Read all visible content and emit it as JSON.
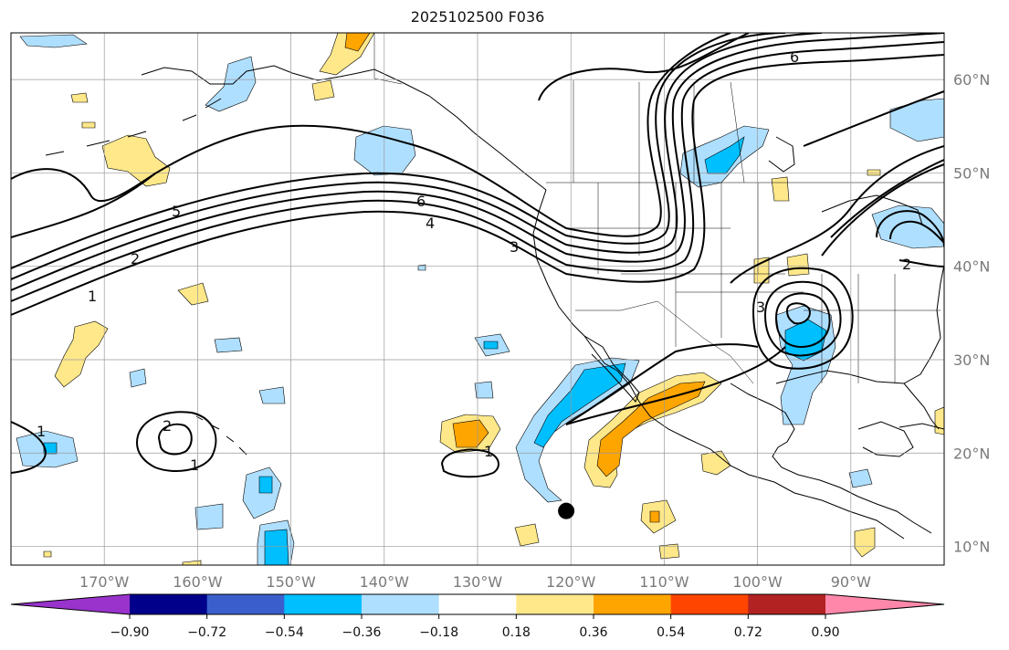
{
  "title": "2025102500 F036",
  "map": {
    "lon_range": [
      -180,
      -80
    ],
    "lat_range": [
      8,
      65
    ],
    "lon_grid": [
      -170,
      -160,
      -150,
      -140,
      -130,
      -120,
      -110,
      -100,
      -90
    ],
    "lat_grid": [
      10,
      20,
      30,
      40,
      50,
      60
    ],
    "lon_labels": [
      "170°W",
      "160°W",
      "150°W",
      "140°W",
      "130°W",
      "120°W",
      "110°W",
      "100°W",
      "90°W"
    ],
    "lat_labels": [
      "10°N",
      "20°N",
      "30°N",
      "40°N",
      "50°N",
      "60°N"
    ],
    "storm_marker": {
      "lon": -120.5,
      "lat": 13.8,
      "icon": "storm-center-dot-icon"
    }
  },
  "contour_labels": [
    "6",
    "5",
    "4",
    "3",
    "2",
    "1",
    "6",
    "3",
    "2",
    "2",
    "1",
    "1",
    "1"
  ],
  "colorbar": {
    "ticks": [
      "−0.90",
      "−0.72",
      "−0.54",
      "−0.36",
      "−0.18",
      "0.18",
      "0.36",
      "0.54",
      "0.72",
      "0.90"
    ],
    "colors": [
      "#9933cc",
      "#00008b",
      "#3a5fcd",
      "#00bfff",
      "#afdfff",
      "#ffffff",
      "#ffe88a",
      "#ffa500",
      "#ff4500",
      "#b22222",
      "#ff88aa"
    ]
  }
}
